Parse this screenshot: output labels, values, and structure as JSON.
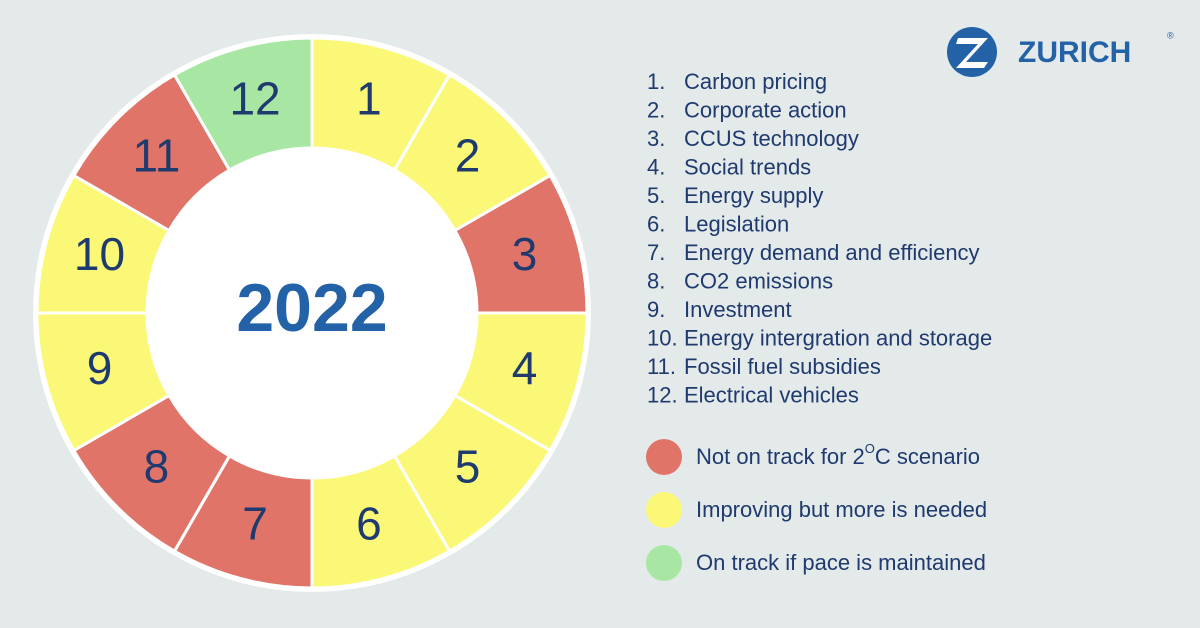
{
  "logo": {
    "name": "ZURICH",
    "mark": "®"
  },
  "wheel": {
    "title": "2022",
    "segments": [
      {
        "label": "1",
        "color": "#fbf877"
      },
      {
        "label": "2",
        "color": "#fbf877"
      },
      {
        "label": "3",
        "color": "#e07468"
      },
      {
        "label": "4",
        "color": "#fbf877"
      },
      {
        "label": "5",
        "color": "#fbf877"
      },
      {
        "label": "6",
        "color": "#fbf877"
      },
      {
        "label": "7",
        "color": "#e07468"
      },
      {
        "label": "8",
        "color": "#e07468"
      },
      {
        "label": "9",
        "color": "#fbf877"
      },
      {
        "label": "10",
        "color": "#fbf877"
      },
      {
        "label": "11",
        "color": "#e07468"
      },
      {
        "label": "12",
        "color": "#a8e6a3"
      }
    ]
  },
  "list": [
    {
      "number": "1.",
      "text": "Carbon pricing"
    },
    {
      "number": "2.",
      "text": "Corporate action"
    },
    {
      "number": "3.",
      "text": "CCUS technology"
    },
    {
      "number": "4.",
      "text": "Social trends"
    },
    {
      "number": "5.",
      "text": "Energy supply"
    },
    {
      "number": "6.",
      "text": "Legislation"
    },
    {
      "number": "7.",
      "text": "Energy demand and efficiency"
    },
    {
      "number": "8.",
      "text": "CO2 emissions"
    },
    {
      "number": "9.",
      "text": "Investment"
    },
    {
      "number": "10.",
      "text": "Energy intergration and storage"
    },
    {
      "number": "11.",
      "text": "Fossil fuel subsidies"
    },
    {
      "number": "12.",
      "text": "Electrical vehicles"
    }
  ],
  "legend": [
    {
      "color": "#e07468",
      "parts": [
        "Not on track for 2",
        "O",
        "C scenario"
      ]
    },
    {
      "color": "#fbf877",
      "parts": [
        "Improving but more is needed"
      ]
    },
    {
      "color": "#a8e6a3",
      "parts": [
        "On track if pace is maintained"
      ]
    }
  ]
}
